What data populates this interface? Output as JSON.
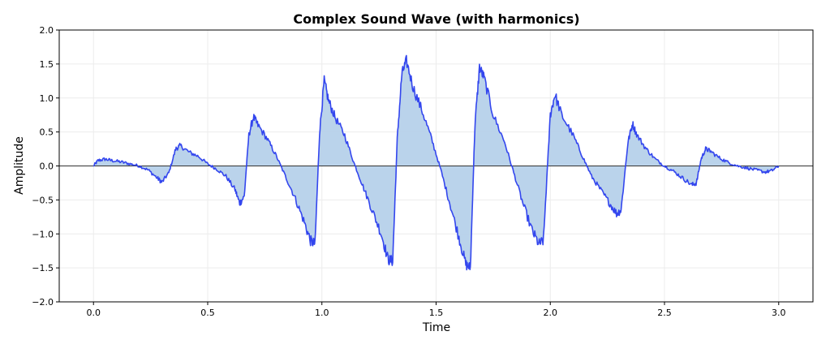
{
  "chart_data": {
    "type": "area",
    "title": "Complex Sound Wave (with harmonics)",
    "xlabel": "Time",
    "ylabel": "Amplitude",
    "xlim": [
      -0.15,
      3.15
    ],
    "ylim": [
      -2.0,
      2.0
    ],
    "xticks": [
      "0.0",
      "0.5",
      "1.0",
      "1.5",
      "2.0",
      "2.5",
      "3.0"
    ],
    "yticks": [
      "2.0",
      "1.5",
      "1.0",
      "0.5",
      "0.0",
      "−0.5",
      "−1.0",
      "−1.5",
      "−2.0"
    ],
    "grid": true,
    "baseline": 0,
    "colors": {
      "line": "#3346ee",
      "fill": "#b6d1ea",
      "baseline": "#333333",
      "grid": "#ececec"
    },
    "series": [
      {
        "x": [
          0.0,
          0.02,
          0.05,
          0.08,
          0.12,
          0.16,
          0.2,
          0.24,
          0.28,
          0.3,
          0.33,
          0.36,
          0.38,
          0.42,
          0.46,
          0.5,
          0.54,
          0.58,
          0.62,
          0.64,
          0.66,
          0.68,
          0.7,
          0.72,
          0.76,
          0.8,
          0.84,
          0.88,
          0.92,
          0.95,
          0.97,
          0.99,
          1.01,
          1.03,
          1.06,
          1.1,
          1.14,
          1.18,
          1.22,
          1.26,
          1.29,
          1.31,
          1.33,
          1.35,
          1.37,
          1.4,
          1.44,
          1.48,
          1.52,
          1.56,
          1.6,
          1.63,
          1.65,
          1.67,
          1.69,
          1.71,
          1.75,
          1.8,
          1.84,
          1.88,
          1.92,
          1.95,
          1.97,
          2.0,
          2.02,
          2.05,
          2.1,
          2.14,
          2.18,
          2.22,
          2.26,
          2.29,
          2.31,
          2.34,
          2.36,
          2.38,
          2.42,
          2.46,
          2.5,
          2.54,
          2.58,
          2.62,
          2.64,
          2.66,
          2.68,
          2.7,
          2.74,
          2.78,
          2.82,
          2.86,
          2.9,
          2.94,
          2.97,
          3.0
        ],
        "y": [
          0.0,
          0.08,
          0.1,
          0.08,
          0.06,
          0.03,
          0.0,
          -0.06,
          -0.18,
          -0.24,
          -0.1,
          0.25,
          0.3,
          0.2,
          0.14,
          0.03,
          -0.05,
          -0.15,
          -0.35,
          -0.55,
          -0.45,
          0.45,
          0.72,
          0.6,
          0.4,
          0.15,
          -0.15,
          -0.45,
          -0.8,
          -1.1,
          -1.15,
          0.5,
          1.25,
          0.95,
          0.7,
          0.45,
          0.05,
          -0.3,
          -0.65,
          -1.0,
          -1.38,
          -1.4,
          0.4,
          1.35,
          1.55,
          1.15,
          0.8,
          0.4,
          -0.05,
          -0.55,
          -1.05,
          -1.45,
          -1.5,
          0.6,
          1.45,
          1.3,
          0.75,
          0.35,
          -0.1,
          -0.55,
          -0.95,
          -1.15,
          -1.1,
          0.75,
          1.05,
          0.75,
          0.45,
          0.15,
          -0.15,
          -0.35,
          -0.55,
          -0.7,
          -0.65,
          0.35,
          0.62,
          0.45,
          0.25,
          0.1,
          0.0,
          -0.08,
          -0.18,
          -0.28,
          -0.25,
          0.1,
          0.25,
          0.22,
          0.12,
          0.05,
          0.0,
          -0.03,
          -0.06,
          -0.09,
          -0.07,
          0.0
        ]
      }
    ]
  }
}
